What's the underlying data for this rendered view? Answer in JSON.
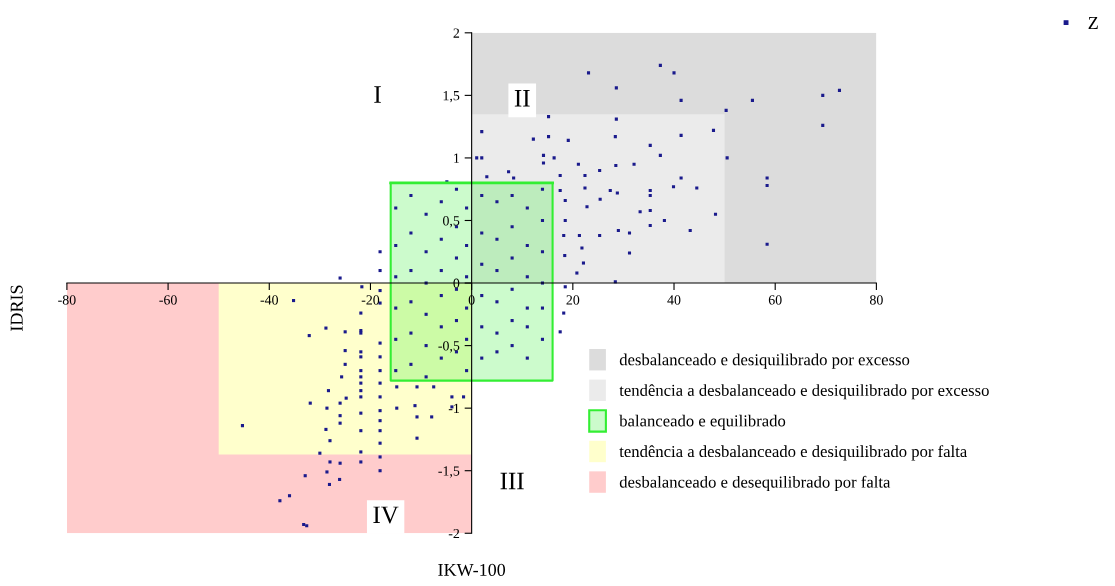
{
  "chart_data": {
    "type": "scatter",
    "xlabel": "IKW-100",
    "ylabel": "IDRIS",
    "xlim": [
      -80,
      80
    ],
    "xticks": [
      -80,
      -60,
      -40,
      -20,
      0,
      20,
      40,
      60,
      80
    ],
    "ylim": [
      -2,
      2
    ],
    "yticks": [
      2,
      {
        "value": 1.5,
        "label": "1,5"
      },
      1,
      {
        "value": 0.5,
        "label": "0,5"
      },
      0,
      {
        "value": -0.5,
        "label": "-0,5"
      },
      -1,
      {
        "value": -1.5,
        "label": "-1,5"
      },
      -2
    ],
    "grid": false,
    "legend": "top right",
    "marker": "square",
    "annotations": [
      {
        "text": "I",
        "x": -18.6,
        "y": 1.49
      },
      {
        "text": "II",
        "x": 10,
        "y": 1.46
      },
      {
        "text": "III",
        "x": 8,
        "y": -1.6
      },
      {
        "text": "IV",
        "x": -17,
        "y": -1.87
      }
    ],
    "series": [
      {
        "type": "area",
        "name": "desbalanceado e desiquilibrado por excesso",
        "color": "#dcdcdc",
        "marker": "none",
        "x": [
          0,
          80
        ],
        "values": [
          2,
          2
        ]
      },
      {
        "type": "area",
        "name": "tendência a desbalanceado e desiquilibrado por excesso",
        "color": "#ebebeb",
        "marker": "none",
        "x": [
          0,
          50
        ],
        "values": [
          1.35,
          1.35
        ]
      },
      {
        "type": "line",
        "name": "balanceado e equilibrado",
        "color": "#33ee33",
        "marker": "none",
        "x": [
          -16,
          16
        ],
        "values": [
          0.8,
          0.8
        ],
        "lower": [
          -0.78,
          -0.78
        ],
        "upper": [
          0.8,
          0.8
        ]
      },
      {
        "type": "area",
        "name": "tendência a desbalanceado e desiquilibrado por falta",
        "color": "#ffffcc",
        "marker": "none",
        "x": [
          -50,
          0
        ],
        "values": [
          -1.37,
          -1.37
        ]
      },
      {
        "type": "area",
        "name": "desbalanceado e desequilibrado por falta",
        "color": "#ffcccc",
        "marker": "none",
        "x": [
          -80,
          0
        ],
        "values": [
          -2,
          -2
        ]
      },
      {
        "name": "Z",
        "color": "#1a1a8c",
        "x": [
          23.1,
          37.3,
          40.0,
          28.6,
          41.4,
          55.5,
          69.4,
          72.7,
          69.4,
          50.3,
          47.8,
          41.4,
          50.5,
          35.3,
          37.3,
          28.6,
          28.4,
          28.5,
          32.1,
          25.3,
          22.4,
          41.4,
          58.4,
          58.4,
          44.5,
          39.9,
          35.3,
          35.3,
          27.4,
          28.8,
          22.4,
          25.4,
          22.8,
          33.3,
          35.3,
          38.1,
          48.2,
          35.3,
          43.2,
          31.2,
          25.3,
          21.3,
          29.0,
          31.2,
          58.4,
          21.8,
          22.1,
          20.8,
          18.5,
          18.2,
          18.4,
          2.0,
          1.0,
          2.0,
          12.2,
          15.2,
          19.1,
          14.2,
          14.2,
          16.3,
          21.1,
          3.0,
          7.3,
          8.3,
          15.2,
          -4.9,
          17.5,
          17.5,
          18.5,
          28.4,
          -35.2,
          -45.3,
          -32.1,
          -28.8,
          -25.0,
          -25.0,
          -25.0,
          -25.7,
          -28.3,
          -31.9,
          -28.6,
          -26.0,
          -26.0,
          -26.0,
          -24.8,
          -28.8,
          -28.0,
          -30.0,
          -28.0,
          -26.0,
          -26.1,
          -28.1,
          -28.6,
          -32.9,
          -36.0,
          -37.9,
          -32.6,
          -33.2,
          -21.9,
          -21.9,
          -21.9,
          -21.9,
          -21.9,
          -21.9,
          -21.9,
          -21.9,
          -21.9,
          -21.9,
          -21.9,
          -21.9,
          -21.9,
          -21.9,
          -18.1,
          -18.1,
          -18.1,
          -18.1,
          -18.1,
          -18.1,
          -18.1,
          -18.1,
          -18.1,
          -18.1,
          -18.1,
          -18.1,
          -18.1,
          -14.8,
          -14.8,
          -10.8,
          -10.8,
          -10.8,
          -7.9,
          -7.5,
          -3.9,
          -3.9,
          -1.6,
          -11.2,
          -18.1,
          -18.1,
          -26.0,
          -21.7,
          17.5,
          18.2,
          18.5,
          -15,
          -15,
          -15,
          -15,
          -15,
          -15,
          -12,
          -12,
          -12,
          -12,
          -12,
          -12,
          -9,
          -9,
          -9,
          -9,
          -9,
          -9,
          -6,
          -6,
          -6,
          -6,
          -6,
          -6,
          -3,
          -3,
          -3,
          -3,
          -3,
          -3,
          -1,
          -1,
          -1,
          -1,
          -1,
          -1,
          2,
          2,
          2,
          2,
          2,
          2,
          5,
          5,
          5,
          5,
          5,
          5,
          8,
          8,
          8,
          8,
          8,
          8,
          11,
          11,
          11,
          11,
          11,
          11,
          14,
          14,
          14,
          14,
          14,
          14
        ],
        "values": [
          1.68,
          1.74,
          1.68,
          1.56,
          1.46,
          1.46,
          1.5,
          1.54,
          1.26,
          1.38,
          1.22,
          1.18,
          1.0,
          1.1,
          1.02,
          1.31,
          1.17,
          0.94,
          0.95,
          0.9,
          0.86,
          0.84,
          0.84,
          0.78,
          0.76,
          0.77,
          0.74,
          0.7,
          0.74,
          0.72,
          0.76,
          0.67,
          0.61,
          0.57,
          0.58,
          0.5,
          0.55,
          0.46,
          0.42,
          0.4,
          0.38,
          0.38,
          0.42,
          0.24,
          0.31,
          0.28,
          0.16,
          0.08,
          0.5,
          0.38,
          0.22,
          1.21,
          1.0,
          1.0,
          1.15,
          1.17,
          1.14,
          1.02,
          0.96,
          1.0,
          0.95,
          0.85,
          0.89,
          0.84,
          1.33,
          0.81,
          0.86,
          0.74,
          0.66,
          0.01,
          -0.14,
          -1.14,
          -0.42,
          -0.36,
          -0.39,
          -0.54,
          -0.65,
          -0.75,
          -0.86,
          -0.96,
          -1.0,
          -0.96,
          -1.06,
          -1.12,
          -0.92,
          -1.17,
          -1.26,
          -1.36,
          -1.43,
          -1.44,
          -1.57,
          -1.61,
          -1.51,
          -1.54,
          -1.7,
          -1.74,
          -1.94,
          -1.93,
          -0.24,
          -0.38,
          -0.4,
          -0.55,
          -0.59,
          -0.7,
          -0.75,
          -0.8,
          -0.86,
          -0.91,
          -1.04,
          -1.18,
          -1.35,
          -1.43,
          -0.06,
          -0.16,
          -0.48,
          -0.59,
          -0.7,
          -0.8,
          -0.91,
          -1.02,
          -1.1,
          -1.18,
          -1.28,
          -1.39,
          -1.5,
          -0.83,
          -1.0,
          -0.83,
          -1.07,
          -1.24,
          -1.07,
          -0.83,
          -0.91,
          -0.99,
          -0.91,
          -0.98,
          0.25,
          0.1,
          0.04,
          -0.03,
          -0.39,
          -0.24,
          -0.03,
          0.6,
          0.3,
          0.05,
          -0.2,
          -0.45,
          -0.7,
          0.7,
          0.4,
          0.1,
          -0.15,
          -0.4,
          -0.65,
          0.55,
          0.25,
          0.0,
          -0.25,
          -0.5,
          -0.75,
          0.65,
          0.35,
          0.1,
          -0.1,
          -0.35,
          -0.6,
          0.75,
          0.45,
          0.2,
          -0.05,
          -0.3,
          -0.55,
          0.6,
          0.3,
          0.05,
          -0.2,
          -0.45,
          -0.7,
          0.7,
          0.4,
          0.15,
          -0.1,
          -0.35,
          -0.6,
          0.65,
          0.35,
          0.1,
          -0.15,
          -0.4,
          -0.55,
          0.7,
          0.45,
          0.2,
          -0.05,
          -0.3,
          -0.5,
          0.6,
          0.3,
          0.05,
          -0.2,
          -0.35,
          -0.6,
          0.75,
          0.5,
          0.25,
          0.0,
          -0.2,
          -0.45
        ]
      }
    ]
  }
}
